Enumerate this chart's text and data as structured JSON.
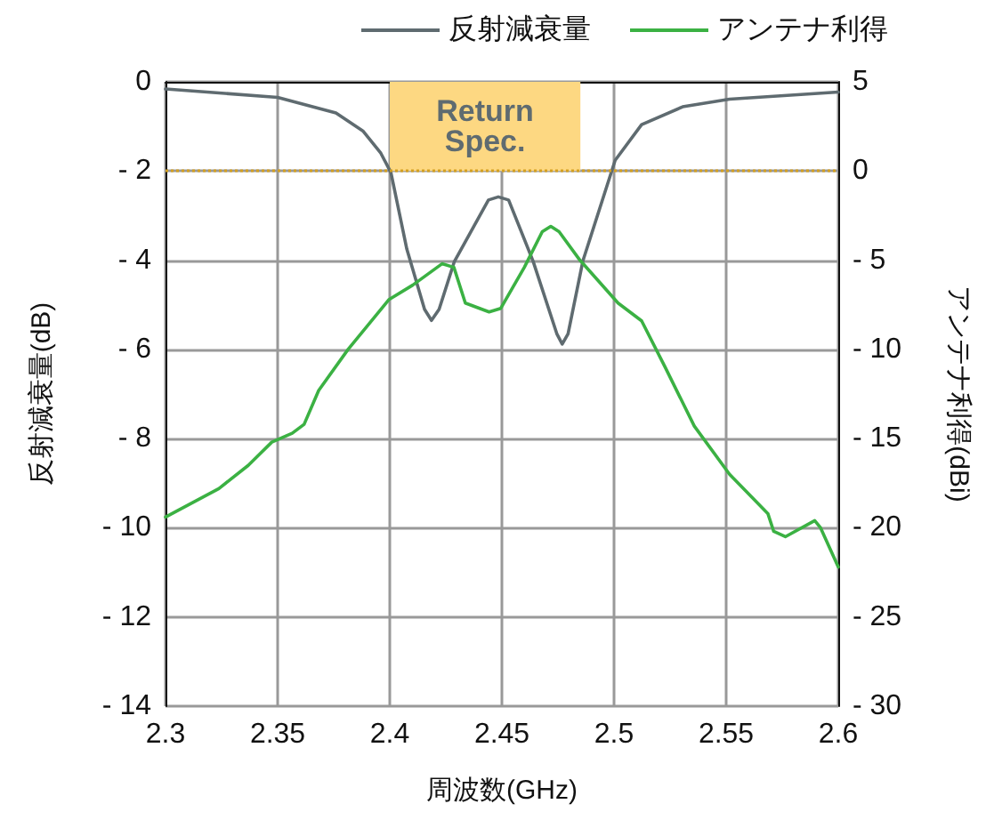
{
  "chart_data": {
    "type": "line",
    "xlabel": "周波数(GHz)",
    "ylabel": "反射減衰量(dB)",
    "y2label": "アンテナ利得(dBi)",
    "xlim": [
      2.3,
      2.6
    ],
    "xticks": [
      2.3,
      2.35,
      2.4,
      2.45,
      2.5,
      2.55,
      2.6
    ],
    "ylim": [
      -14,
      0
    ],
    "yticks": [
      {
        "value": -14,
        "label": "- 14"
      },
      {
        "value": -12,
        "label": "- 12"
      },
      {
        "value": -10,
        "label": "- 10"
      },
      {
        "value": -8,
        "label": "- 8"
      },
      {
        "value": -6,
        "label": "- 6"
      },
      {
        "value": -4,
        "label": "- 4"
      },
      {
        "value": -2,
        "label": "- 2"
      },
      0
    ],
    "y2lim": [
      -30,
      5
    ],
    "y2ticks": [
      {
        "value": -30,
        "label": "- 30"
      },
      {
        "value": -25,
        "label": "- 25"
      },
      {
        "value": -20,
        "label": "- 20"
      },
      {
        "value": -15,
        "label": "- 15"
      },
      {
        "value": -10,
        "label": "- 10"
      },
      {
        "value": -5,
        "label": "- 5"
      },
      0,
      5
    ],
    "grid": true,
    "legend": "top right",
    "marker": "none",
    "line_style": "solid",
    "ref_lines": [
      {
        "axis": "y",
        "value": -2,
        "color": "#d4a020",
        "line_style": "dotted"
      }
    ],
    "bands": [
      {
        "axis": "x",
        "from": 2.4,
        "to": 2.485,
        "label": "Return\nSpec.",
        "color": "#fdd882"
      }
    ],
    "series": [
      {
        "name": "反射減衰量",
        "color": "#5f6b70",
        "x": [
          2.3,
          2.35,
          2.376,
          2.388,
          2.396,
          2.4005,
          2.4076,
          2.4155,
          2.4186,
          2.422,
          2.4288,
          2.444,
          2.4484,
          2.453,
          2.4639,
          2.4745,
          2.4769,
          2.4795,
          2.4861,
          2.5005,
          2.5123,
          2.5306,
          2.5515,
          2.6
        ],
        "values": [
          -0.16,
          -0.35,
          -0.7,
          -1.1,
          -1.6,
          -2.03,
          -3.75,
          -5.1,
          -5.35,
          -5.1,
          -4.03,
          -2.65,
          -2.58,
          -2.65,
          -4.02,
          -5.65,
          -5.88,
          -5.65,
          -4.02,
          -1.76,
          -0.96,
          -0.56,
          -0.39,
          -0.23
        ]
      },
      {
        "name": "アンテナ利得",
        "color": "#3bb143",
        "axis": "y2",
        "x": [
          2.3,
          2.3238,
          2.3369,
          2.3474,
          2.3565,
          2.3618,
          2.3683,
          2.3814,
          2.3997,
          2.4102,
          2.4233,
          2.4286,
          2.4337,
          2.4443,
          2.4495,
          2.46,
          2.468,
          2.4718,
          2.4755,
          2.4848,
          2.5018,
          2.5123,
          2.5228,
          2.5358,
          2.5515,
          2.5686,
          2.5712,
          2.5764,
          2.5895,
          2.5921,
          2.6
        ],
        "values": [
          -19.4,
          -17.8,
          -16.5,
          -15.2,
          -14.7,
          -14.2,
          -12.3,
          -10.0,
          -7.2,
          -6.4,
          -5.2,
          -5.4,
          -7.4,
          -7.9,
          -7.7,
          -5.4,
          -3.4,
          -3.1,
          -3.4,
          -5.0,
          -7.4,
          -8.4,
          -11.0,
          -14.3,
          -17.0,
          -19.2,
          -20.2,
          -20.5,
          -19.6,
          -20.0,
          -22.2
        ]
      }
    ]
  }
}
